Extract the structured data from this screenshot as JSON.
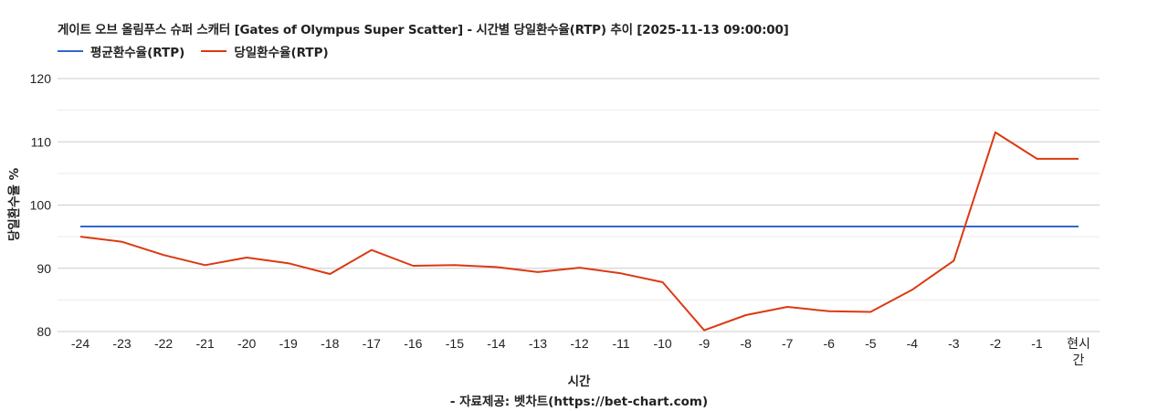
{
  "chart": {
    "title": "게이트 오브 올림푸스 슈퍼 스캐터 [Gates of Olympus Super Scatter] - 시간별 당일환수율(RTP) 추이 [2025-11-13 09:00:00]",
    "legend": [
      {
        "label": "평균환수율(RTP)",
        "color": "#3366cc"
      },
      {
        "label": "당일환수율(RTP)",
        "color": "#dc3912"
      }
    ],
    "xlabel": "시간",
    "ylabel": "당일환수율 %",
    "source": "- 자료제공: 벳차트(https://bet-chart.com)"
  },
  "chart_data": {
    "type": "line",
    "title": "게이트 오브 올림푸스 슈퍼 스캐터 [Gates of Olympus Super Scatter] - 시간별 당일환수율(RTP) 추이 [2025-11-13 09:00:00]",
    "xlabel": "시간",
    "ylabel": "당일환수율 %",
    "ylim": [
      80,
      120
    ],
    "yticks": [
      80,
      90,
      100,
      110,
      120
    ],
    "grid": true,
    "legend_position": "top",
    "categories": [
      "-24",
      "-23",
      "-22",
      "-21",
      "-20",
      "-19",
      "-18",
      "-17",
      "-16",
      "-15",
      "-14",
      "-13",
      "-12",
      "-11",
      "-10",
      "-9",
      "-8",
      "-7",
      "-6",
      "-5",
      "-4",
      "-3",
      "-2",
      "-1",
      "현시간"
    ],
    "series": [
      {
        "name": "평균환수율(RTP)",
        "color": "#3366cc",
        "values": [
          96.6,
          96.6,
          96.6,
          96.6,
          96.6,
          96.6,
          96.6,
          96.6,
          96.6,
          96.6,
          96.6,
          96.6,
          96.6,
          96.6,
          96.6,
          96.6,
          96.6,
          96.6,
          96.6,
          96.6,
          96.6,
          96.6,
          96.6,
          96.6,
          96.6
        ]
      },
      {
        "name": "당일환수율(RTP)",
        "color": "#dc3912",
        "values": [
          95.0,
          94.2,
          92.1,
          90.5,
          91.7,
          90.8,
          89.1,
          92.9,
          90.4,
          90.5,
          90.2,
          89.4,
          90.1,
          89.2,
          87.8,
          80.2,
          82.6,
          83.9,
          83.2,
          83.1,
          86.6,
          91.2,
          111.5,
          107.3,
          107.3
        ]
      }
    ]
  }
}
